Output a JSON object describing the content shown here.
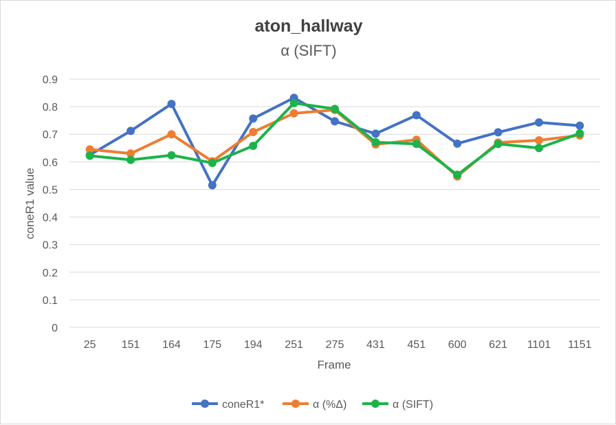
{
  "chart_data": {
    "type": "line",
    "title": "aton_hallway",
    "subtitle": "α (SIFT)",
    "xlabel": "Frame",
    "ylabel": "coneR1 value",
    "categories": [
      "25",
      "151",
      "164",
      "175",
      "194",
      "251",
      "275",
      "431",
      "451",
      "600",
      "621",
      "1101",
      "1151"
    ],
    "ylim": [
      0,
      0.9
    ],
    "yticks": [
      "0",
      "0.1",
      "0.2",
      "0.3",
      "0.4",
      "0.5",
      "0.6",
      "0.7",
      "0.8",
      "0.9"
    ],
    "grid": "horizontal",
    "legend_position": "bottom",
    "series": [
      {
        "name": "coneR1*",
        "color": "#4472c4",
        "values": [
          0.625,
          0.712,
          0.81,
          0.515,
          0.757,
          0.832,
          0.747,
          0.702,
          0.769,
          0.666,
          0.707,
          0.743,
          0.731
        ]
      },
      {
        "name": "α (%Δ)",
        "color": "#ed7d31",
        "values": [
          0.645,
          0.63,
          0.7,
          0.602,
          0.708,
          0.776,
          0.788,
          0.663,
          0.68,
          0.547,
          0.67,
          0.678,
          0.696
        ]
      },
      {
        "name": "α (SIFT)",
        "color": "#1bb34a",
        "values": [
          0.622,
          0.607,
          0.624,
          0.596,
          0.658,
          0.813,
          0.792,
          0.671,
          0.665,
          0.553,
          0.665,
          0.65,
          0.703
        ]
      }
    ]
  }
}
